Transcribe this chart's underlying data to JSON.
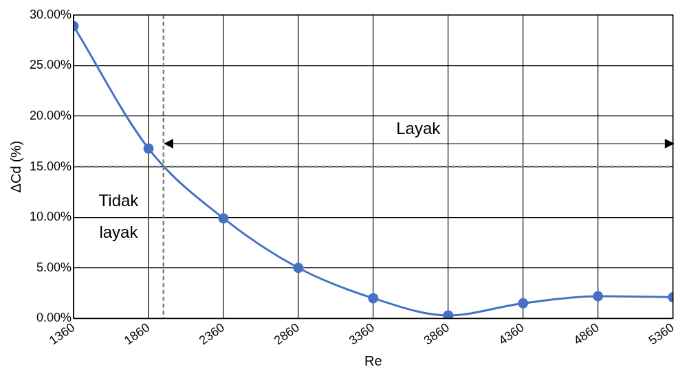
{
  "chart_data": {
    "type": "line",
    "xlabel": "Re",
    "ylabel": "ΔCd (%)",
    "x": [
      1360,
      1860,
      2360,
      2860,
      3360,
      3860,
      4360,
      4860,
      5360
    ],
    "series": [
      {
        "color": "#4472c4",
        "values": [
          28.9,
          16.8,
          9.9,
          5.0,
          2.0,
          0.3,
          1.5,
          2.2,
          2.1
        ]
      }
    ],
    "xlim": [
      1360,
      5360
    ],
    "xticks": [
      1360,
      1860,
      2360,
      2860,
      3360,
      3860,
      4360,
      4860,
      5360
    ],
    "ylim": [
      0,
      30
    ],
    "yticks": [
      {
        "value": 0,
        "label": "0.00%"
      },
      {
        "value": 5,
        "label": "5.00%"
      },
      {
        "value": 10,
        "label": "10.00%"
      },
      {
        "value": 15,
        "label": "15.00%"
      },
      {
        "value": 20,
        "label": "20.00%"
      },
      {
        "value": 25,
        "label": "25.00%"
      },
      {
        "value": 30,
        "label": "30.00%"
      }
    ],
    "grid": true,
    "legend": false,
    "marker": "circle",
    "line_style": "solid",
    "ref_lines": [
      {
        "axis": "x",
        "value": 1960,
        "color": "#7f7f7f",
        "line_style": "dashed"
      },
      {
        "axis": "y",
        "value": 15,
        "color": "#7f7f7f",
        "line_style": "dashed"
      }
    ],
    "annotations": [
      "Layak",
      "Tidak layak"
    ]
  }
}
